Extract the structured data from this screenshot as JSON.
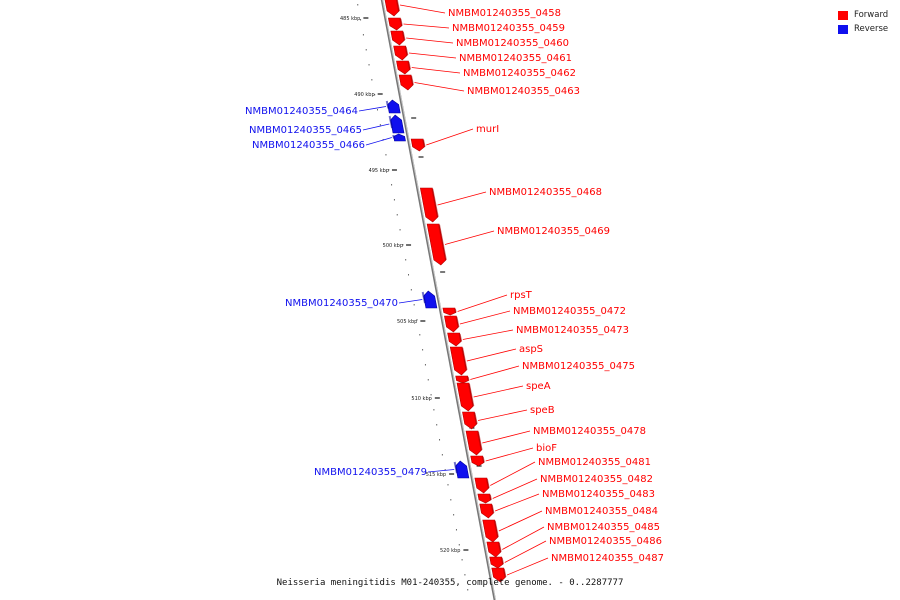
{
  "colors": {
    "forward": "#ff0000",
    "reverse": "#1010ee",
    "backbone": "#999999"
  },
  "legend": [
    {
      "label": "Forward",
      "strand": "forward"
    },
    {
      "label": "Reverse",
      "strand": "reverse"
    }
  ],
  "caption": "Neisseria meningitidis M01-240355, complete genome. - 0..2287777",
  "ticks": [
    "485 kbp",
    "490 kbp",
    "495 kbp",
    "500 kbp",
    "505 kbp",
    "510 kbp",
    "515 kbp",
    "520 kbp"
  ],
  "genes": [
    {
      "name": "NMBM01240355_0458",
      "strand": "forward"
    },
    {
      "name": "NMBM01240355_0459",
      "strand": "forward"
    },
    {
      "name": "NMBM01240355_0460",
      "strand": "forward"
    },
    {
      "name": "NMBM01240355_0461",
      "strand": "forward"
    },
    {
      "name": "NMBM01240355_0462",
      "strand": "forward"
    },
    {
      "name": "NMBM01240355_0463",
      "strand": "forward"
    },
    {
      "name": "NMBM01240355_0464",
      "strand": "reverse"
    },
    {
      "name": "NMBM01240355_0465",
      "strand": "reverse"
    },
    {
      "name": "NMBM01240355_0466",
      "strand": "reverse"
    },
    {
      "name": "murI",
      "strand": "forward"
    },
    {
      "name": "NMBM01240355_0468",
      "strand": "forward"
    },
    {
      "name": "NMBM01240355_0469",
      "strand": "forward"
    },
    {
      "name": "NMBM01240355_0470",
      "strand": "reverse"
    },
    {
      "name": "rpsT",
      "strand": "forward"
    },
    {
      "name": "NMBM01240355_0472",
      "strand": "forward"
    },
    {
      "name": "NMBM01240355_0473",
      "strand": "forward"
    },
    {
      "name": "aspS",
      "strand": "forward"
    },
    {
      "name": "NMBM01240355_0475",
      "strand": "forward"
    },
    {
      "name": "speA",
      "strand": "forward"
    },
    {
      "name": "speB",
      "strand": "forward"
    },
    {
      "name": "NMBM01240355_0478",
      "strand": "forward"
    },
    {
      "name": "bioF",
      "strand": "forward"
    },
    {
      "name": "NMBM01240355_0479",
      "strand": "reverse"
    },
    {
      "name": "NMBM01240355_0481",
      "strand": "forward"
    },
    {
      "name": "NMBM01240355_0482",
      "strand": "forward"
    },
    {
      "name": "NMBM01240355_0483",
      "strand": "forward"
    },
    {
      "name": "NMBM01240355_0484",
      "strand": "forward"
    },
    {
      "name": "NMBM01240355_0485",
      "strand": "forward"
    },
    {
      "name": "NMBM01240355_0486",
      "strand": "forward"
    },
    {
      "name": "NMBM01240355_0487",
      "strand": "forward"
    }
  ]
}
